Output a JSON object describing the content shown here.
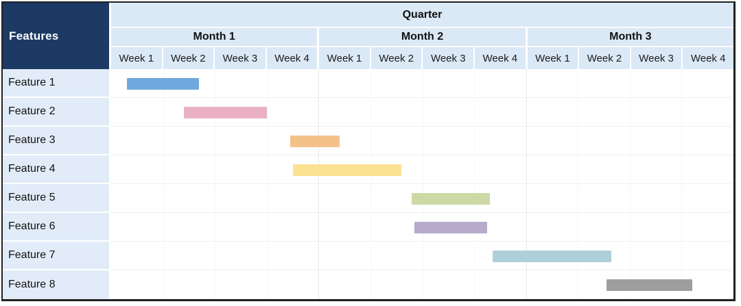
{
  "colors": {
    "header_navy": "#1c3a64",
    "header_blue": "#dbe8f6",
    "label_blue": "#e1ecf8",
    "table_border": "#1f1f1f",
    "row_line": "#efefef",
    "month_gridline": "#e7e7e7",
    "week_gridline": "#f7f7f7",
    "body_text": "#111111",
    "corner_text": "#ffffff"
  },
  "table": {
    "corner_label": "Features",
    "quarter_label": "Quarter"
  },
  "chart_data": {
    "type": "gantt",
    "title": "Quarter",
    "time_unit": "weeks",
    "timeline_total_weeks": 12,
    "weeks_per_month": 4,
    "months": [
      {
        "label": "Month 1",
        "weeks": [
          "Week 1",
          "Week 2",
          "Week 3",
          "Week 4"
        ]
      },
      {
        "label": "Month 2",
        "weeks": [
          "Week 1",
          "Week 2",
          "Week 3",
          "Week 4"
        ]
      },
      {
        "label": "Month 3",
        "weeks": [
          "Week 1",
          "Week 2",
          "Week 3",
          "Week 4"
        ]
      }
    ],
    "tasks": [
      {
        "feature": "Feature 1",
        "start_week": 0.3,
        "duration_weeks": 1.4,
        "color": "#6fa8dc"
      },
      {
        "feature": "Feature 2",
        "start_week": 1.4,
        "duration_weeks": 1.6,
        "color": "#eab0c3"
      },
      {
        "feature": "Feature 3",
        "start_week": 3.45,
        "duration_weeks": 0.95,
        "color": "#f3c28a"
      },
      {
        "feature": "Feature 4",
        "start_week": 3.5,
        "duration_weeks": 2.1,
        "color": "#fbe293"
      },
      {
        "feature": "Feature 5",
        "start_week": 5.8,
        "duration_weeks": 1.5,
        "color": "#cdd9a5"
      },
      {
        "feature": "Feature 6",
        "start_week": 5.85,
        "duration_weeks": 1.4,
        "color": "#b6abcb"
      },
      {
        "feature": "Feature 7",
        "start_week": 7.35,
        "duration_weeks": 2.3,
        "color": "#aecfda"
      },
      {
        "feature": "Feature 8",
        "start_week": 9.55,
        "duration_weeks": 1.65,
        "color": "#9e9e9e"
      }
    ]
  }
}
